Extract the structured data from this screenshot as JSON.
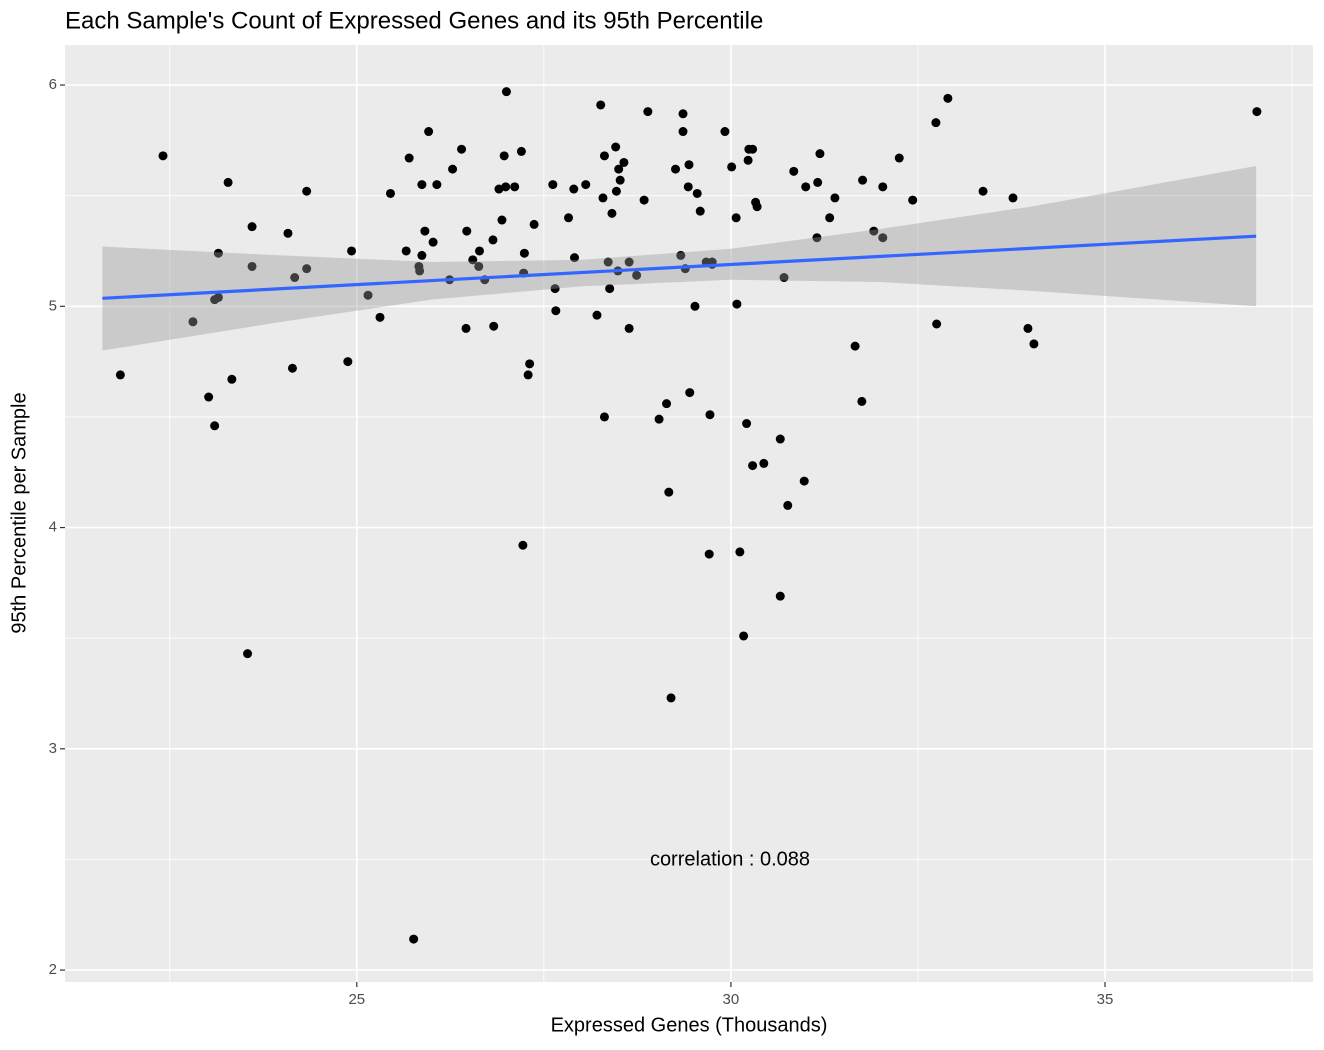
{
  "chart_data": {
    "type": "scatter",
    "title": "Each Sample's Count of Expressed Genes and its 95th Percentile",
    "x_label": "Expressed Genes (Thousands)",
    "y_label": "95th Percentile per Sample",
    "annotation": "correlation : 0.088",
    "xlim": [
      21.1,
      37.78
    ],
    "ylim": [
      1.946,
      6.181
    ],
    "xticks": [
      25,
      30,
      35
    ],
    "yticks": [
      2,
      3,
      4,
      5,
      6
    ],
    "grid": true,
    "color": "#000000",
    "x": [
      21.84,
      22.41,
      22.81,
      23.02,
      23.1,
      23.1,
      23.15,
      23.15,
      23.28,
      23.33,
      23.54,
      23.6,
      23.6,
      24.08,
      24.14,
      24.17,
      24.33,
      24.33,
      24.88,
      24.93,
      25.15,
      25.31,
      25.45,
      25.66,
      25.7,
      25.76,
      25.83,
      25.84,
      25.87,
      25.87,
      25.91,
      25.96,
      26.02,
      26.07,
      26.24,
      26.28,
      26.4,
      26.46,
      26.47,
      26.55,
      26.63,
      26.64,
      26.71,
      26.82,
      26.83,
      26.9,
      26.94,
      26.97,
      26.99,
      27.0,
      27.11,
      27.2,
      27.22,
      27.23,
      27.24,
      27.29,
      27.31,
      27.37,
      27.62,
      27.65,
      27.66,
      27.83,
      27.9,
      27.91,
      28.06,
      28.21,
      28.26,
      28.29,
      28.31,
      28.31,
      28.36,
      28.38,
      28.41,
      28.46,
      28.47,
      28.49,
      28.5,
      28.52,
      28.57,
      28.64,
      28.64,
      28.74,
      28.84,
      28.89,
      29.04,
      29.14,
      29.17,
      29.2,
      29.26,
      29.33,
      29.36,
      29.36,
      29.39,
      29.43,
      29.44,
      29.45,
      29.52,
      29.55,
      29.59,
      29.67,
      29.71,
      29.72,
      29.75,
      29.75,
      29.92,
      30.01,
      30.07,
      30.08,
      30.12,
      30.17,
      30.21,
      30.23,
      30.24,
      30.29,
      30.29,
      30.33,
      30.35,
      30.44,
      30.66,
      30.66,
      30.71,
      30.76,
      30.84,
      30.98,
      31.0,
      31.15,
      31.16,
      31.19,
      31.32,
      31.39,
      31.66,
      31.75,
      31.76,
      31.91,
      32.03,
      32.03,
      32.25,
      32.43,
      32.74,
      32.75,
      32.9,
      33.37,
      33.77,
      33.97,
      34.05,
      37.03
    ],
    "y": [
      4.69,
      5.68,
      4.93,
      4.59,
      4.46,
      5.03,
      5.04,
      5.24,
      5.56,
      4.67,
      3.43,
      5.36,
      5.18,
      5.33,
      4.72,
      5.13,
      5.52,
      5.17,
      4.75,
      5.25,
      5.05,
      4.95,
      5.51,
      5.25,
      5.67,
      2.14,
      5.18,
      5.16,
      5.55,
      5.23,
      5.34,
      5.79,
      5.29,
      5.55,
      5.12,
      5.62,
      5.71,
      4.9,
      5.34,
      5.21,
      5.18,
      5.25,
      5.12,
      5.3,
      4.91,
      5.53,
      5.39,
      5.68,
      5.54,
      5.97,
      5.54,
      5.7,
      3.92,
      5.15,
      5.24,
      4.69,
      4.74,
      5.37,
      5.55,
      5.08,
      4.98,
      5.4,
      5.53,
      5.22,
      5.55,
      4.96,
      5.91,
      5.49,
      5.68,
      4.5,
      5.2,
      5.08,
      5.42,
      5.72,
      5.52,
      5.16,
      5.62,
      5.57,
      5.65,
      5.2,
      4.9,
      5.14,
      5.48,
      5.88,
      4.49,
      4.56,
      4.16,
      3.23,
      5.62,
      5.23,
      5.87,
      5.79,
      5.17,
      5.54,
      5.64,
      4.61,
      5.0,
      5.51,
      5.43,
      5.2,
      3.88,
      4.51,
      5.2,
      5.19,
      5.79,
      5.63,
      5.4,
      5.01,
      3.89,
      3.51,
      4.47,
      5.66,
      5.71,
      5.71,
      4.28,
      5.47,
      5.45,
      4.29,
      4.4,
      3.69,
      5.13,
      4.1,
      5.61,
      4.21,
      5.54,
      5.31,
      5.56,
      5.69,
      5.4,
      5.49,
      4.82,
      4.57,
      5.57,
      5.34,
      5.31,
      5.54,
      5.67,
      5.48,
      5.83,
      4.92,
      5.94,
      5.52,
      5.49,
      4.9,
      4.83,
      5.88
    ],
    "trend": {
      "color": "#3366ff",
      "x": [
        21.6,
        37.02
      ],
      "y": [
        5.036,
        5.317
      ]
    },
    "band": {
      "color": "#999999",
      "x": [
        21.6,
        24,
        26,
        28,
        30,
        32,
        34,
        37.02
      ],
      "lower": [
        4.8,
        4.93,
        5.03,
        5.09,
        5.12,
        5.11,
        5.07,
        5.0
      ],
      "upper": [
        5.27,
        5.23,
        5.2,
        5.21,
        5.26,
        5.35,
        5.45,
        5.634
      ]
    }
  }
}
